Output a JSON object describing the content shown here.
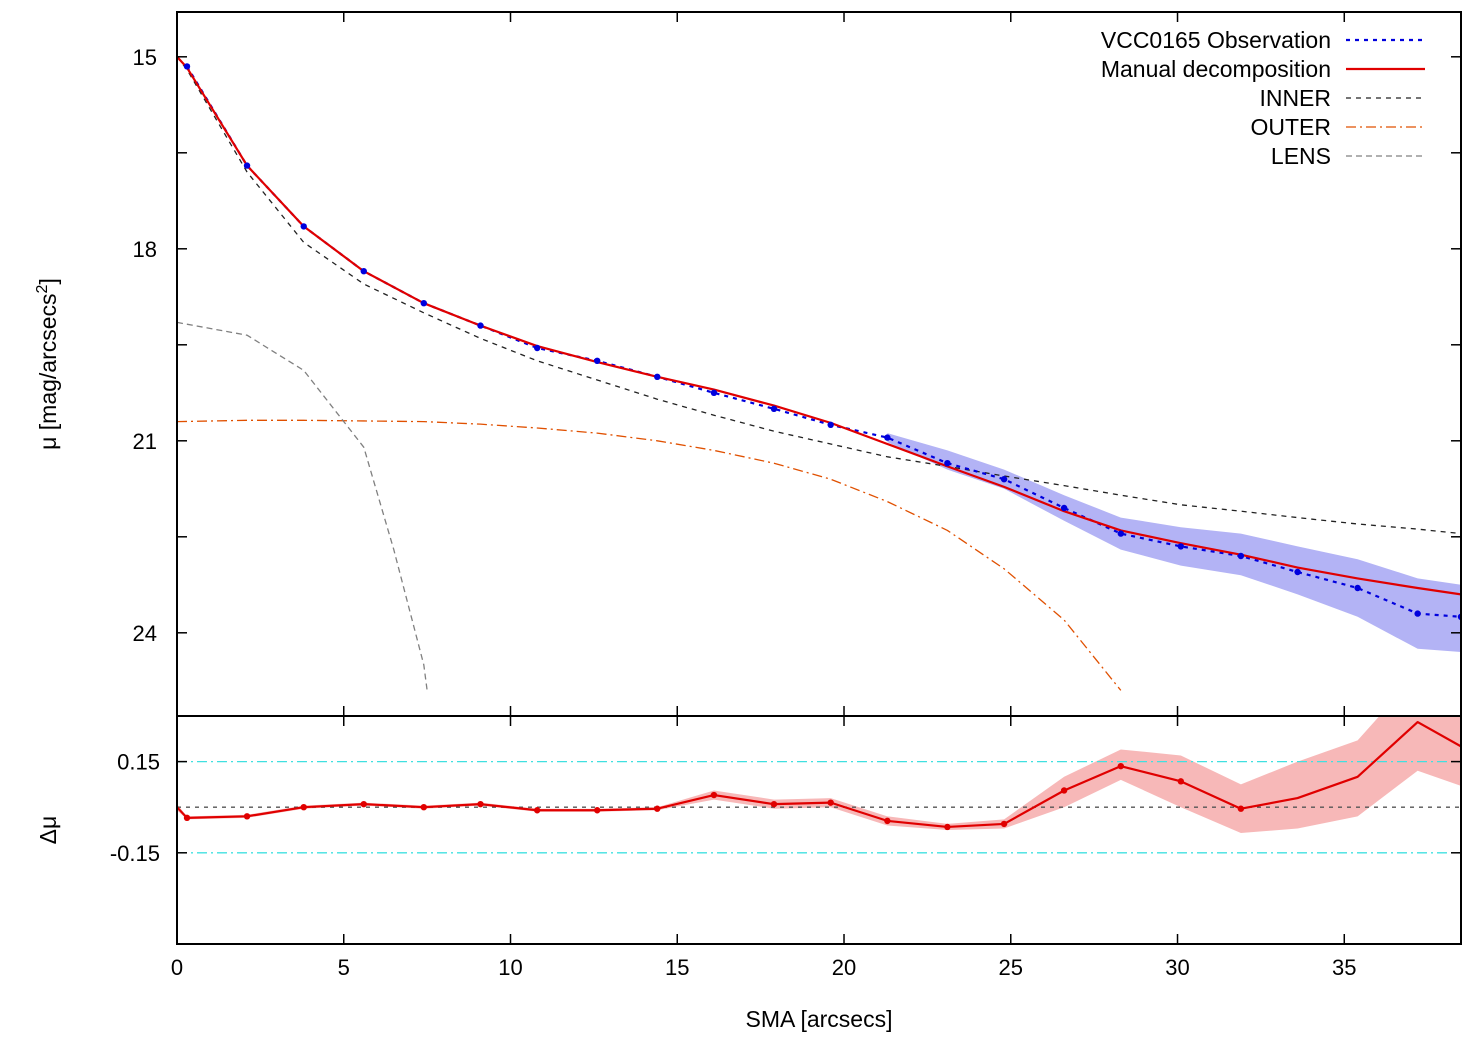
{
  "chart_data": [
    {
      "type": "line",
      "panel": "profile",
      "xlabel": "SMA [arcsecs]",
      "ylabel": "μ [mag/arcsecs",
      "ylabel_sup": "2",
      "ylabel_close": "]",
      "y_inverted": true,
      "xlim": [
        0,
        38.5
      ],
      "ylim": [
        25.3,
        14.3
      ],
      "yticks": [
        15,
        18,
        21,
        24
      ],
      "ytick_labels": [
        "15",
        "18",
        "21",
        "24"
      ],
      "legend_position": "top-right",
      "series": [
        {
          "name": "VCC0165 Observation",
          "style": "dotted",
          "color": "#0000dd",
          "x": [
            0.3,
            2.1,
            3.8,
            5.6,
            7.4,
            9.1,
            10.8,
            12.6,
            14.4,
            16.1,
            17.9,
            19.6,
            21.3,
            23.1,
            24.8,
            26.6,
            28.3,
            30.1,
            31.9,
            33.6,
            35.4,
            37.2,
            38.5
          ],
          "y": [
            15.15,
            16.7,
            17.65,
            18.35,
            18.85,
            19.2,
            19.55,
            19.75,
            20.0,
            20.25,
            20.5,
            20.75,
            20.95,
            21.35,
            21.6,
            22.05,
            22.45,
            22.65,
            22.8,
            23.05,
            23.3,
            23.7,
            23.75
          ],
          "band_low": [
            null,
            null,
            null,
            null,
            null,
            null,
            null,
            null,
            null,
            null,
            null,
            null,
            20.88,
            21.15,
            21.45,
            21.85,
            22.2,
            22.35,
            22.45,
            22.65,
            22.85,
            23.15,
            23.25
          ],
          "band_high": [
            null,
            null,
            null,
            null,
            null,
            null,
            null,
            null,
            null,
            null,
            null,
            null,
            21.02,
            21.45,
            21.75,
            22.25,
            22.7,
            22.95,
            23.1,
            23.4,
            23.75,
            24.25,
            24.3
          ],
          "band_color": "#b3b3f5"
        },
        {
          "name": "Manual decomposition",
          "style": "solid",
          "color": "#e00000",
          "x": [
            0,
            0.3,
            2.1,
            3.8,
            5.6,
            7.4,
            9.1,
            10.8,
            12.6,
            14.4,
            16.1,
            17.9,
            19.6,
            21.3,
            23.1,
            24.8,
            26.6,
            28.3,
            30.1,
            31.9,
            33.6,
            35.4,
            37.2,
            38.5
          ],
          "y": [
            15.0,
            15.17,
            16.7,
            17.65,
            18.35,
            18.85,
            19.2,
            19.52,
            19.77,
            20.0,
            20.2,
            20.45,
            20.72,
            21.05,
            21.4,
            21.72,
            22.1,
            22.4,
            22.6,
            22.78,
            22.98,
            23.15,
            23.3,
            23.4
          ]
        },
        {
          "name": "INNER",
          "style": "dashed-fine",
          "color": "#222222",
          "x": [
            0,
            0.3,
            2.1,
            3.8,
            5.6,
            7.4,
            9.1,
            10.8,
            12.6,
            14.4,
            16.1,
            17.9,
            19.6,
            21.3,
            23.1,
            24.8,
            26.6,
            28.3,
            30.1,
            31.9,
            33.6,
            35.4,
            37.2,
            38.5
          ],
          "y": [
            15.0,
            15.2,
            16.8,
            17.9,
            18.55,
            19.0,
            19.4,
            19.75,
            20.05,
            20.35,
            20.6,
            20.85,
            21.05,
            21.25,
            21.4,
            21.55,
            21.7,
            21.85,
            22.0,
            22.1,
            22.2,
            22.3,
            22.38,
            22.45
          ]
        },
        {
          "name": "OUTER",
          "style": "dash-dot",
          "color": "#e05000",
          "x": [
            0,
            2.1,
            3.8,
            5.6,
            7.4,
            9.1,
            10.8,
            12.6,
            14.4,
            16.1,
            17.9,
            19.6,
            21.3,
            23.1,
            24.8,
            26.6,
            28.3
          ],
          "y": [
            20.7,
            20.68,
            20.68,
            20.69,
            20.7,
            20.74,
            20.8,
            20.88,
            21.0,
            21.15,
            21.35,
            21.6,
            21.95,
            22.4,
            23.0,
            23.8,
            24.9
          ]
        },
        {
          "name": "LENS",
          "style": "dashed",
          "color": "#808080",
          "x": [
            0,
            2.1,
            3.8,
            5.6,
            6.5,
            7.4,
            7.5
          ],
          "y": [
            19.15,
            19.35,
            19.9,
            21.1,
            22.7,
            24.5,
            24.9
          ]
        }
      ]
    },
    {
      "type": "line",
      "panel": "residuals",
      "ylabel": "Δμ",
      "xlim": [
        0,
        38.5
      ],
      "ylim": [
        -0.45,
        0.3
      ],
      "xticks": [
        0,
        5,
        10,
        15,
        20,
        25,
        30,
        35
      ],
      "xtick_labels": [
        "0",
        "5",
        "10",
        "15",
        "20",
        "25",
        "30",
        "35"
      ],
      "yticks": [
        0.15,
        -0.15
      ],
      "ytick_labels": [
        "0.15",
        "-0.15"
      ],
      "reference_lines": [
        {
          "y": 0.15,
          "style": "dash-dot",
          "color": "#40e0e0"
        },
        {
          "y": -0.15,
          "style": "dash-dot",
          "color": "#40e0e0"
        },
        {
          "y": 0,
          "style": "dotted",
          "color": "#555555"
        }
      ],
      "series": [
        {
          "name": "",
          "style": "solid",
          "color": "#e00000",
          "x": [
            0,
            0.3,
            2.1,
            3.8,
            5.6,
            7.4,
            9.1,
            10.8,
            12.6,
            14.4,
            16.1,
            17.9,
            19.6,
            21.3,
            23.1,
            24.8,
            26.6,
            28.3,
            30.1,
            31.9,
            33.6,
            35.4,
            37.2,
            38.5
          ],
          "y": [
            0.0,
            -0.035,
            -0.03,
            0.0,
            0.01,
            0.0,
            0.01,
            -0.01,
            -0.01,
            -0.005,
            0.04,
            0.01,
            0.015,
            -0.045,
            -0.065,
            -0.055,
            0.055,
            0.135,
            0.085,
            -0.005,
            0.03,
            0.1,
            0.28,
            0.2
          ],
          "markers": [
            false,
            true,
            true,
            true,
            true,
            true,
            true,
            true,
            true,
            true,
            true,
            true,
            true,
            true,
            true,
            true,
            true,
            true,
            true,
            true,
            false,
            false,
            false,
            false
          ],
          "band_low": [
            -0.01,
            -0.04,
            -0.035,
            -0.005,
            0.005,
            -0.005,
            0.005,
            -0.015,
            -0.015,
            -0.01,
            0.025,
            -0.005,
            0.0,
            -0.06,
            -0.075,
            -0.07,
            0.0,
            0.09,
            0.0,
            -0.085,
            -0.07,
            -0.03,
            0.12,
            0.07
          ],
          "band_high": [
            0.01,
            -0.03,
            -0.025,
            0.005,
            0.015,
            0.005,
            0.015,
            -0.005,
            -0.005,
            0.0,
            0.055,
            0.025,
            0.03,
            -0.03,
            -0.055,
            -0.04,
            0.1,
            0.19,
            0.17,
            0.075,
            0.15,
            0.22,
            0.44,
            0.33
          ],
          "band_color": "#f7b8b8"
        }
      ]
    }
  ]
}
